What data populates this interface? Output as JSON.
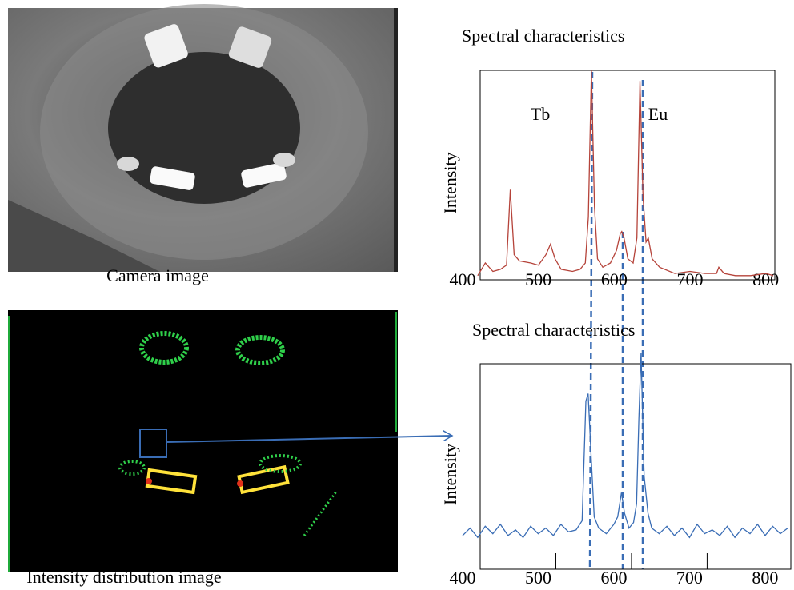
{
  "images": [
    {
      "caption": "Camera image"
    },
    {
      "caption": "Intensity distribution image"
    }
  ],
  "chart_data": [
    {
      "type": "line",
      "title": "Spectral characteristics",
      "y_label": "Intensity",
      "annotations": [
        "Tb",
        "Eu"
      ],
      "x": [
        420,
        430,
        440,
        450,
        458,
        463,
        468,
        475,
        490,
        500,
        510,
        516,
        522,
        530,
        545,
        555,
        562,
        566,
        570,
        574,
        578,
        585,
        595,
        603,
        608,
        610,
        613,
        618,
        625,
        630,
        634,
        638,
        642,
        645,
        650,
        660,
        680,
        700,
        720,
        735,
        738,
        745,
        760,
        780,
        800,
        810
      ],
      "series": [
        {
          "color": "#b5433a",
          "values": [
            2,
            8,
            4,
            5,
            7,
            43,
            12,
            9,
            8,
            7,
            12,
            17,
            10,
            5,
            4,
            5,
            8,
            30,
            100,
            35,
            10,
            6,
            8,
            14,
            22,
            23,
            20,
            10,
            8,
            20,
            95,
            40,
            18,
            20,
            10,
            6,
            3,
            4,
            3,
            3,
            6,
            3,
            2,
            2,
            3,
            2
          ]
        }
      ],
      "xlim": [
        400,
        812
      ],
      "xticks": [
        400,
        500,
        600,
        700,
        800
      ],
      "ylim": [
        0,
        100
      ],
      "tick_marks": false,
      "grid": false
    },
    {
      "type": "line",
      "title": "Spectral characteristics",
      "y_label": "Intensity",
      "x": [
        400,
        410,
        420,
        430,
        440,
        450,
        460,
        470,
        480,
        490,
        500,
        510,
        520,
        530,
        540,
        550,
        558,
        563,
        566,
        570,
        574,
        580,
        590,
        600,
        605,
        610,
        614,
        620,
        626,
        630,
        633,
        636,
        640,
        645,
        650,
        660,
        670,
        680,
        690,
        700,
        710,
        720,
        730,
        740,
        750,
        760,
        770,
        780,
        790,
        800,
        810,
        820,
        830
      ],
      "series": [
        {
          "color": "#3a6db5",
          "values": [
            18,
            22,
            17,
            23,
            19,
            24,
            18,
            21,
            17,
            23,
            19,
            22,
            18,
            24,
            20,
            21,
            26,
            90,
            94,
            60,
            28,
            22,
            19,
            24,
            28,
            41,
            30,
            22,
            25,
            35,
            80,
            116,
            50,
            30,
            22,
            19,
            23,
            18,
            22,
            17,
            24,
            19,
            21,
            18,
            23,
            17,
            22,
            19,
            24,
            18,
            23,
            19,
            22
          ]
        }
      ],
      "xlim": [
        400,
        834
      ],
      "xticks": [
        400,
        500,
        600,
        700,
        800
      ],
      "ylim": [
        0,
        110
      ],
      "tick_marks": true,
      "grid": false
    }
  ]
}
